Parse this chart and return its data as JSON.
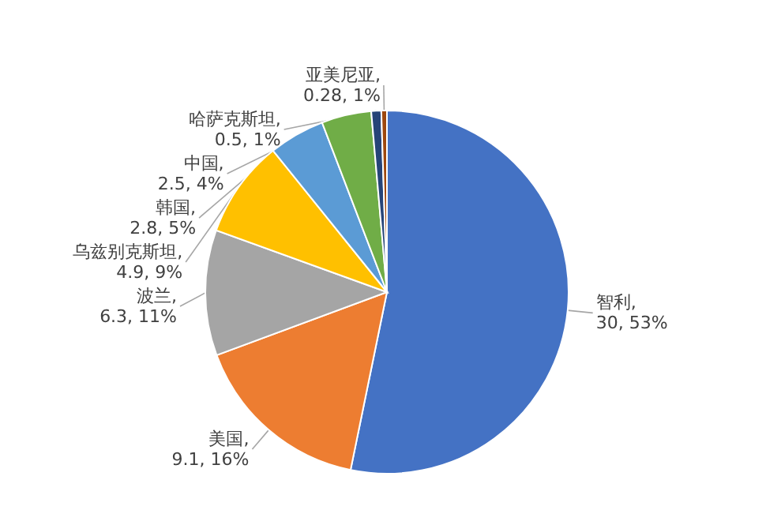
{
  "chart_data": {
    "type": "pie",
    "categories": [
      "智利",
      "美国",
      "波兰",
      "乌兹别克斯坦",
      "韩国",
      "中国",
      "哈萨克斯坦",
      "亚美尼亚"
    ],
    "values": [
      30,
      9.1,
      6.3,
      4.9,
      2.8,
      2.5,
      0.5,
      0.28
    ],
    "colors": [
      "#4472c4",
      "#ed7d31",
      "#a5a5a5",
      "#ffc000",
      "#5b9bd5",
      "#70ad47",
      "#264478",
      "#9e480e"
    ],
    "value_labels": [
      ", 30, 53%",
      ", 9.1, 16%",
      ", 6.3, 11%",
      ", 4.9, 9%",
      ", 2.8, 5%",
      ", 2.5, 4%",
      ", 0.5, 1%",
      ", 0.28, 1%"
    ]
  }
}
